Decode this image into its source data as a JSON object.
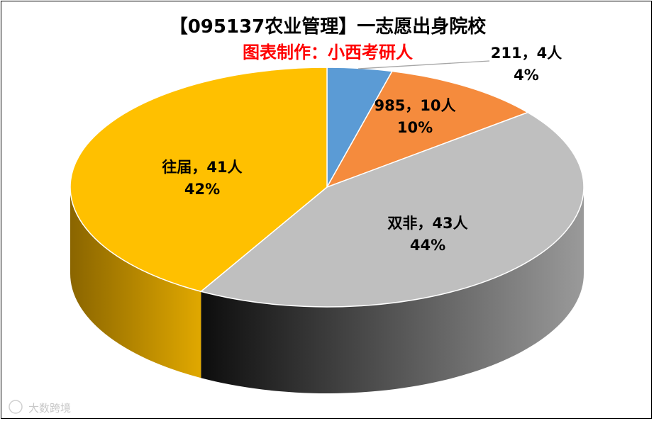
{
  "chart_data": {
    "type": "pie",
    "title": "【095137农业管理】一志愿出身院校",
    "subtitle": "图表制作：小西考研人",
    "categories": [
      "211",
      "985",
      "双非",
      "往届"
    ],
    "values": [
      4,
      10,
      43,
      41
    ],
    "percentages": [
      "4%",
      "10%",
      "44%",
      "42%"
    ],
    "labels": [
      {
        "line1": "211，4人",
        "line2": "4%"
      },
      {
        "line1": "985，10人",
        "line2": "10%"
      },
      {
        "line1": "双非，43人",
        "line2": "44%"
      },
      {
        "line1": "往届，41人",
        "line2": "42%"
      }
    ],
    "colors": [
      "#5b9bd5",
      "#f58b3d",
      "#bfbfbf",
      "#ffc000"
    ],
    "side_colors": [
      [
        "#2e5a85",
        "#4f86c0"
      ],
      [
        "#a54d12",
        "#d06b24"
      ],
      [
        "#9a9a9a",
        "#0d0d0d"
      ],
      [
        "#8a6500",
        "#e0a800"
      ]
    ]
  },
  "title_color": "#000000",
  "subtitle_color": "#ff0000",
  "watermark": "大数跨境"
}
